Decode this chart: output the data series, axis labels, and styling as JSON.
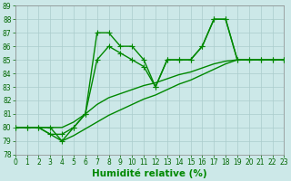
{
  "xlabel": "Humidité relative (%)",
  "xlim": [
    0,
    23
  ],
  "ylim": [
    78,
    89
  ],
  "yticks": [
    78,
    79,
    80,
    81,
    82,
    83,
    84,
    85,
    86,
    87,
    88,
    89
  ],
  "xticks": [
    0,
    1,
    2,
    3,
    4,
    5,
    6,
    7,
    8,
    9,
    10,
    11,
    12,
    13,
    14,
    15,
    16,
    17,
    18,
    19,
    20,
    21,
    22,
    23
  ],
  "background_color": "#cce8e8",
  "grid_color": "#aacccc",
  "line_color": "#008800",
  "line1_y": [
    80,
    80,
    80,
    80,
    79,
    80,
    81,
    87,
    87,
    86,
    86,
    85,
    83,
    85,
    85,
    85,
    86,
    88,
    88,
    85,
    85,
    85,
    85,
    85
  ],
  "line2_y": [
    80,
    80,
    80,
    79.5,
    79.5,
    80,
    81,
    85,
    86,
    85.5,
    85,
    84.5,
    83,
    85,
    85,
    85,
    86,
    88,
    88,
    85,
    85,
    85,
    85,
    85
  ],
  "line3_y": [
    80,
    80,
    80,
    80,
    80,
    80.4,
    81,
    81.7,
    82.2,
    82.5,
    82.8,
    83.1,
    83.3,
    83.6,
    83.9,
    84.1,
    84.4,
    84.7,
    84.9,
    85,
    85,
    85,
    85,
    85
  ],
  "line4_y": [
    80,
    80,
    80,
    79.5,
    79,
    79.4,
    79.9,
    80.4,
    80.9,
    81.3,
    81.7,
    82.1,
    82.4,
    82.8,
    83.2,
    83.5,
    83.9,
    84.3,
    84.7,
    85,
    85,
    85,
    85,
    85
  ],
  "tick_fontsize": 5.5,
  "xlabel_fontsize": 7.5,
  "linewidth": 1.0,
  "marker_size": 3.5
}
